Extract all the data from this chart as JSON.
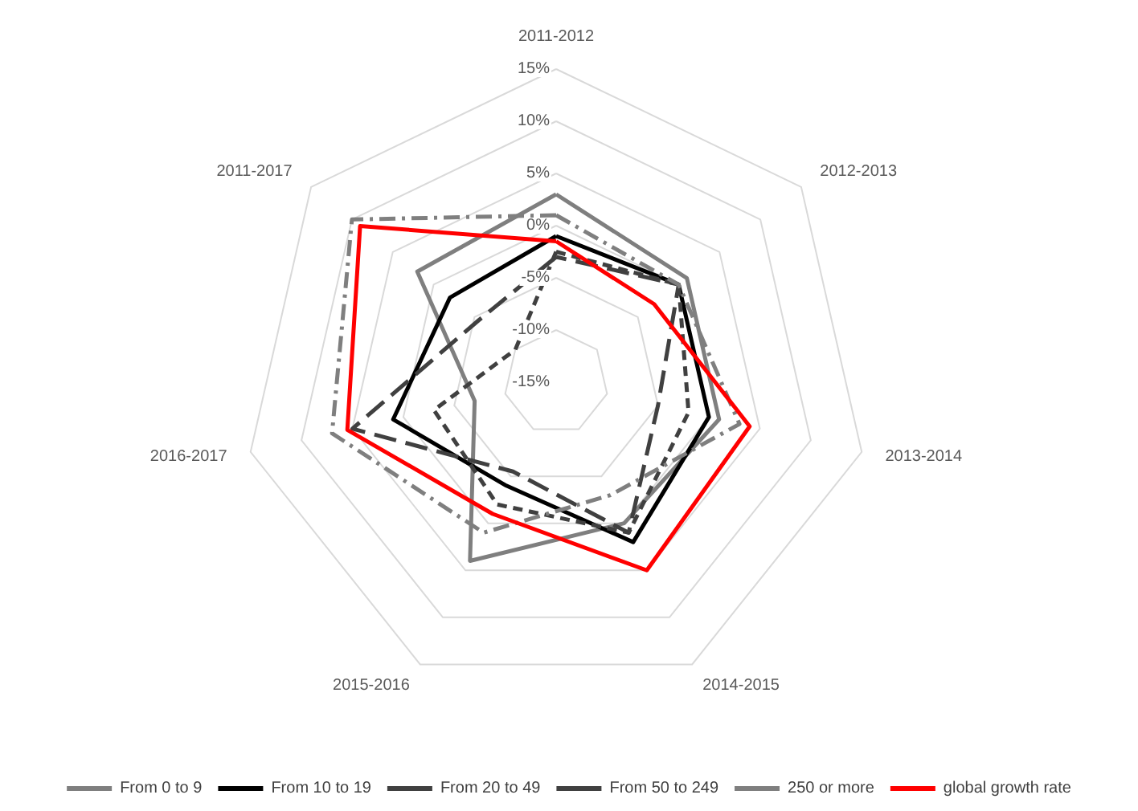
{
  "chart_data": {
    "type": "radar",
    "categories": [
      "2011-2012",
      "2012-2013",
      "2013-2014",
      "2014-2015",
      "2015-2016",
      "2016-2017",
      "2011-2017"
    ],
    "ylim": [
      -15,
      15
    ],
    "yticks": [
      {
        "value": -15,
        "label": "-15%"
      },
      {
        "value": -10,
        "label": "-10%"
      },
      {
        "value": -5,
        "label": "-5%"
      },
      {
        "value": 0,
        "label": "0%"
      },
      {
        "value": 5,
        "label": "5%"
      },
      {
        "value": 10,
        "label": "10%"
      },
      {
        "value": 15,
        "label": "15%"
      }
    ],
    "grid": true,
    "legend": "bottom",
    "marker": "none",
    "series": [
      {
        "name": "From 0 to 9",
        "color": "#7f7f7f",
        "line_style": "solid",
        "values": [
          3,
          1,
          1,
          0,
          4,
          -7,
          2
        ]
      },
      {
        "name": "From 10 to 19",
        "color": "#000000",
        "line_style": "solid",
        "values": [
          -1,
          0,
          0,
          2,
          -4,
          1,
          -2
        ]
      },
      {
        "name": "From 20 to 49",
        "color": "#404040",
        "line_style": "dashed",
        "values": [
          -2.5,
          0,
          -2,
          1,
          -2,
          -3,
          -10
        ]
      },
      {
        "name": "From 50 to 249",
        "color": "#404040",
        "line_style": "longdash",
        "values": [
          -3,
          0,
          -5,
          1,
          -5.5,
          5,
          -5.5
        ]
      },
      {
        "name": "250 or more",
        "color": "#7f7f7f",
        "line_style": "dashdot",
        "values": [
          1,
          0,
          3,
          -3,
          1,
          7,
          10
        ]
      },
      {
        "name": "global growth rate",
        "color": "#ff0000",
        "line_style": "solid",
        "values": [
          -1.5,
          -3,
          4,
          5,
          -1,
          5.5,
          9
        ]
      }
    ]
  }
}
